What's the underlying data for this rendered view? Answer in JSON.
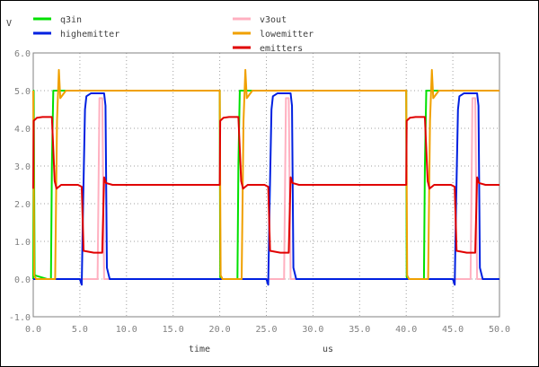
{
  "chart_data": {
    "type": "line",
    "y_unit": "V",
    "xlabel": "time",
    "x_unit": "us",
    "xlim": [
      0,
      50
    ],
    "ylim": [
      -1,
      6
    ],
    "x_ticks": [
      "0.0",
      "5.0",
      "10.0",
      "15.0",
      "20.0",
      "25.0",
      "30.0",
      "35.0",
      "40.0",
      "45.0",
      "50.0"
    ],
    "y_ticks": [
      "-1.0",
      "0.0",
      "1.0",
      "2.0",
      "3.0",
      "4.0",
      "5.0",
      "6.0"
    ],
    "grid": true,
    "legend_position": "top",
    "series": [
      {
        "name": "q3in",
        "color": "#00e000",
        "x": [
          0,
          0.05,
          0.15,
          1.5,
          1.9,
          2.0,
          2.15,
          2.3,
          20.0,
          20.05,
          20.15,
          21.5,
          21.9,
          22.0,
          22.15,
          22.3,
          40.0,
          40.05,
          40.15,
          41.5,
          41.9,
          42.0,
          42.15,
          42.3,
          50
        ],
        "y": [
          0,
          5.0,
          0.1,
          0,
          0,
          3.0,
          5.0,
          5.0,
          5.0,
          0.05,
          0,
          0,
          0,
          3.0,
          5.0,
          5.0,
          5.0,
          0.05,
          0,
          0,
          0,
          3.0,
          5.0,
          5.0,
          5.0
        ]
      },
      {
        "name": "v3out",
        "color": "#ffb0c0",
        "x": [
          0,
          6.9,
          7.1,
          7.4,
          7.6,
          8.0,
          26.9,
          27.1,
          27.4,
          27.6,
          28.0,
          46.9,
          47.1,
          47.4,
          47.6,
          48.0,
          50
        ],
        "y": [
          0,
          0,
          4.8,
          4.8,
          0,
          0,
          0,
          4.8,
          4.8,
          0,
          0,
          0,
          4.8,
          4.8,
          0,
          0,
          0
        ]
      },
      {
        "name": "highemitter",
        "color": "#0020e0",
        "x": [
          0,
          0.1,
          0.3,
          5.0,
          5.2,
          5.35,
          5.55,
          5.7,
          6.2,
          7.6,
          7.75,
          7.9,
          8.2,
          25.0,
          25.2,
          25.35,
          25.55,
          25.7,
          26.2,
          27.6,
          27.75,
          27.9,
          28.2,
          45.0,
          45.2,
          45.35,
          45.55,
          45.7,
          46.2,
          47.6,
          47.75,
          47.9,
          48.2,
          50
        ],
        "y": [
          0,
          0,
          0,
          0,
          -0.15,
          2.0,
          4.5,
          4.85,
          4.93,
          4.93,
          4.6,
          0.3,
          0,
          0,
          -0.15,
          2.0,
          4.5,
          4.85,
          4.93,
          4.93,
          4.6,
          0.3,
          0,
          0,
          -0.15,
          2.0,
          4.5,
          4.85,
          4.93,
          4.93,
          4.6,
          0.3,
          0,
          0
        ]
      },
      {
        "name": "lowemitter",
        "color": "#f0a000",
        "x": [
          0,
          0.1,
          0.3,
          2.35,
          2.55,
          2.75,
          2.9,
          3.5,
          20.0,
          20.1,
          20.3,
          22.35,
          22.55,
          22.75,
          22.9,
          23.5,
          40.0,
          40.1,
          40.3,
          42.35,
          42.55,
          42.75,
          42.9,
          43.5,
          50
        ],
        "y": [
          5.0,
          0.1,
          0,
          0,
          4.2,
          5.55,
          4.8,
          5.0,
          5.0,
          0.1,
          0,
          0,
          4.2,
          5.55,
          4.8,
          5.0,
          5.0,
          0.1,
          0,
          0,
          4.2,
          5.55,
          4.8,
          5.0,
          5.0
        ]
      },
      {
        "name": "emitters",
        "color": "#e00000",
        "x": [
          0,
          0.05,
          0.4,
          1.0,
          2.0,
          2.3,
          2.5,
          3.0,
          4.8,
          5.2,
          5.4,
          6.5,
          7.4,
          7.6,
          7.8,
          8.5,
          20.0,
          20.05,
          20.4,
          21.0,
          22.0,
          22.3,
          22.5,
          23.0,
          24.8,
          25.2,
          25.4,
          26.5,
          27.4,
          27.6,
          27.8,
          28.5,
          40.0,
          40.05,
          40.4,
          41.0,
          42.0,
          42.3,
          42.5,
          43.0,
          44.8,
          45.2,
          45.4,
          46.5,
          47.4,
          47.6,
          47.8,
          48.5,
          50
        ],
        "y": [
          2.4,
          4.2,
          4.28,
          4.3,
          4.3,
          2.6,
          2.4,
          2.5,
          2.5,
          2.45,
          0.75,
          0.7,
          0.7,
          2.7,
          2.55,
          2.5,
          2.5,
          4.2,
          4.28,
          4.3,
          4.3,
          2.6,
          2.4,
          2.5,
          2.5,
          2.45,
          0.75,
          0.7,
          0.7,
          2.7,
          2.55,
          2.5,
          2.5,
          4.2,
          4.28,
          4.3,
          4.3,
          2.6,
          2.4,
          2.5,
          2.5,
          2.45,
          0.75,
          0.7,
          0.7,
          2.7,
          2.55,
          2.5,
          2.5
        ]
      }
    ]
  }
}
